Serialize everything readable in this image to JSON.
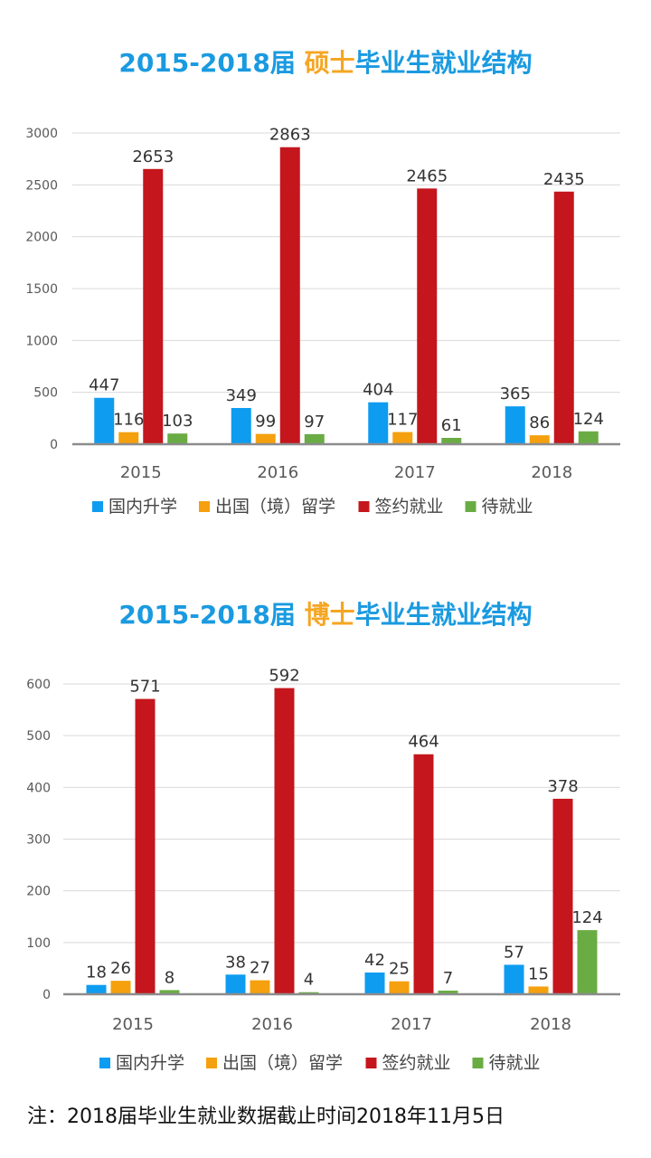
{
  "chart_data": [
    {
      "type": "bar",
      "title_pre": "2015-2018届 ",
      "title_hl": "硕士",
      "title_post": "毕业生就业结构",
      "categories": [
        "2015",
        "2016",
        "2017",
        "2018"
      ],
      "yticks": [
        "0",
        "500",
        "1000",
        "1500",
        "2000",
        "2500",
        "3000"
      ],
      "ylim": [
        0,
        3000
      ],
      "series": [
        {
          "name": "国内升学",
          "color": "#0e9cf0",
          "values": [
            447,
            349,
            404,
            365
          ]
        },
        {
          "name": "出国（境）留学",
          "color": "#f5a00e",
          "values": [
            116,
            99,
            117,
            86
          ]
        },
        {
          "name": "签约就业",
          "color": "#c4161c",
          "values": [
            2653,
            2863,
            2465,
            2435
          ]
        },
        {
          "name": "待就业",
          "color": "#6aac44",
          "values": [
            103,
            97,
            61,
            124
          ]
        }
      ],
      "legend_position": "bottom",
      "grid": true
    },
    {
      "type": "bar",
      "title_pre": "2015-2018届 ",
      "title_hl": "博士",
      "title_post": "毕业生就业结构",
      "categories": [
        "2015",
        "2016",
        "2017",
        "2018"
      ],
      "yticks": [
        "0",
        "100",
        "200",
        "300",
        "400",
        "500",
        "600"
      ],
      "ylim": [
        0,
        600
      ],
      "series": [
        {
          "name": "国内升学",
          "color": "#0e9cf0",
          "values": [
            18,
            38,
            42,
            57
          ]
        },
        {
          "name": "出国（境）留学",
          "color": "#f5a00e",
          "values": [
            26,
            27,
            25,
            15
          ]
        },
        {
          "name": "签约就业",
          "color": "#c4161c",
          "values": [
            571,
            592,
            464,
            378
          ]
        },
        {
          "name": "待就业",
          "color": "#6aac44",
          "values": [
            8,
            4,
            7,
            124
          ]
        }
      ],
      "legend_position": "bottom",
      "grid": true
    }
  ],
  "note": "注：2018届毕业生就业数据截止时间2018年11月5日"
}
